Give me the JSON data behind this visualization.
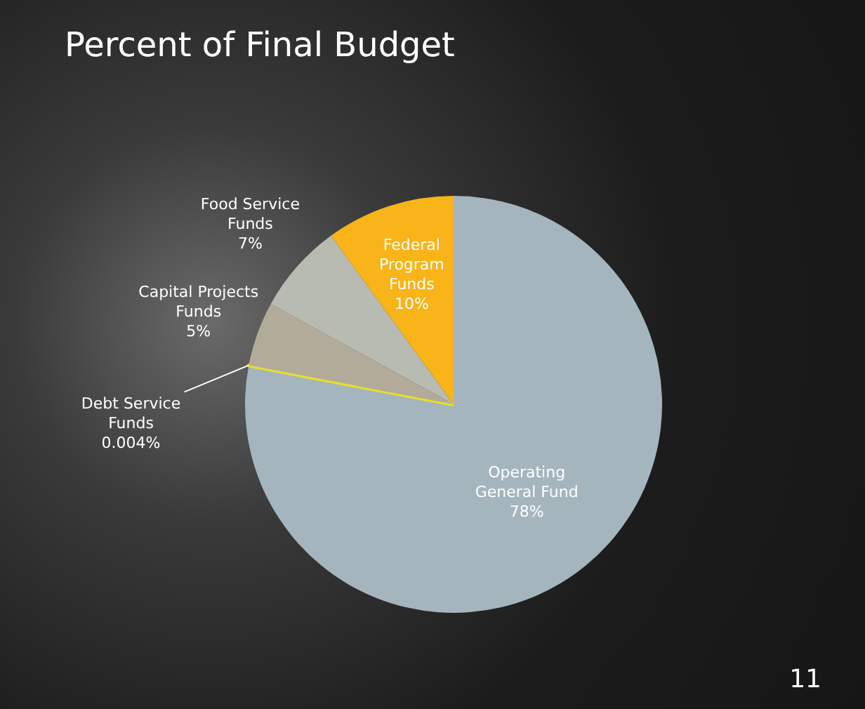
{
  "chart_data": {
    "type": "pie",
    "title": "Percent of Final Budget",
    "categories": [
      "Operating General Fund",
      "Debt Service Funds",
      "Capital Projects Funds",
      "Food Service Funds",
      "Federal Program Funds"
    ],
    "values": [
      78,
      0.004,
      5,
      7,
      10
    ],
    "value_labels": [
      "78%",
      "0.004%",
      "5%",
      "7%",
      "10%"
    ],
    "colors": [
      "#a5b5be",
      "#e6e02a",
      "#b3ab99",
      "#b8bbb1",
      "#f8b418"
    ],
    "legend": false,
    "annotations": [
      "11"
    ]
  }
}
